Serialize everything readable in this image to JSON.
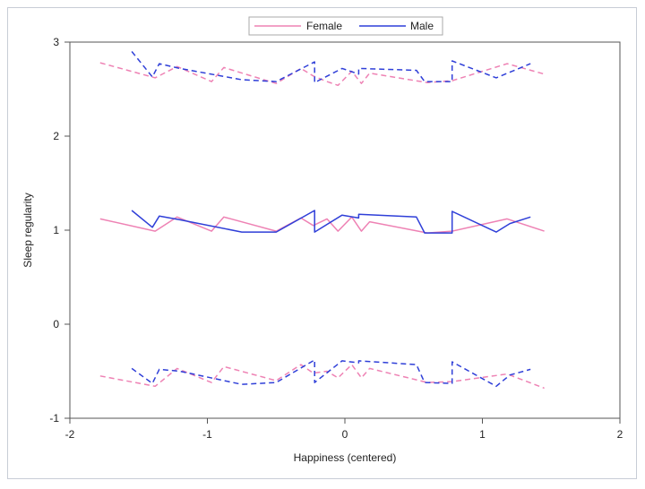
{
  "chart_data": {
    "type": "line",
    "xlabel": "Happiness (centered)",
    "ylabel": "Sleep regularity",
    "xlim": [
      -2,
      2
    ],
    "ylim": [
      -1,
      3
    ],
    "xticks": [
      -2,
      -1,
      0,
      1,
      2
    ],
    "yticks": [
      -1,
      0,
      1,
      2,
      3
    ],
    "legend_position": "top-center",
    "grid": false,
    "series": [
      {
        "name": "Female",
        "color": "#ee82b4",
        "estimate": [
          [
            -1.78,
            1.12
          ],
          [
            -1.38,
            0.99
          ],
          [
            -1.22,
            1.14
          ],
          [
            -0.97,
            0.99
          ],
          [
            -0.88,
            1.14
          ],
          [
            -0.5,
            0.99
          ],
          [
            -0.32,
            1.13
          ],
          [
            -0.23,
            1.05
          ],
          [
            -0.13,
            1.12
          ],
          [
            -0.05,
            0.99
          ],
          [
            0.05,
            1.14
          ],
          [
            0.12,
            0.99
          ],
          [
            0.18,
            1.09
          ],
          [
            0.6,
            0.97
          ],
          [
            0.78,
            0.99
          ],
          [
            1.18,
            1.12
          ],
          [
            1.45,
            0.99
          ]
        ],
        "upper": [
          [
            -1.78,
            2.78
          ],
          [
            -1.38,
            2.62
          ],
          [
            -1.22,
            2.74
          ],
          [
            -0.97,
            2.58
          ],
          [
            -0.88,
            2.73
          ],
          [
            -0.5,
            2.56
          ],
          [
            -0.32,
            2.72
          ],
          [
            -0.23,
            2.64
          ],
          [
            -0.13,
            2.58
          ],
          [
            -0.05,
            2.54
          ],
          [
            0.05,
            2.69
          ],
          [
            0.12,
            2.56
          ],
          [
            0.18,
            2.67
          ],
          [
            0.6,
            2.57
          ],
          [
            0.78,
            2.59
          ],
          [
            1.18,
            2.77
          ],
          [
            1.45,
            2.66
          ]
        ],
        "lower": [
          [
            -1.78,
            -0.55
          ],
          [
            -1.38,
            -0.66
          ],
          [
            -1.22,
            -0.47
          ],
          [
            -0.97,
            -0.62
          ],
          [
            -0.88,
            -0.45
          ],
          [
            -0.5,
            -0.6
          ],
          [
            -0.32,
            -0.43
          ],
          [
            -0.23,
            -0.52
          ],
          [
            -0.13,
            -0.5
          ],
          [
            -0.05,
            -0.57
          ],
          [
            0.05,
            -0.43
          ],
          [
            0.12,
            -0.57
          ],
          [
            0.18,
            -0.47
          ],
          [
            0.6,
            -0.62
          ],
          [
            0.78,
            -0.61
          ],
          [
            1.18,
            -0.53
          ],
          [
            1.45,
            -0.68
          ]
        ]
      },
      {
        "name": "Male",
        "color": "#2f3fd8",
        "estimate": [
          [
            -1.55,
            1.21
          ],
          [
            -1.4,
            1.03
          ],
          [
            -1.35,
            1.15
          ],
          [
            -1.2,
            1.11
          ],
          [
            -0.75,
            0.98
          ],
          [
            -0.5,
            0.98
          ],
          [
            -0.22,
            1.21
          ],
          [
            -0.22,
            0.98
          ],
          [
            -0.02,
            1.16
          ],
          [
            0.1,
            1.13
          ],
          [
            0.1,
            1.17
          ],
          [
            0.52,
            1.14
          ],
          [
            0.58,
            0.97
          ],
          [
            0.78,
            0.97
          ],
          [
            0.78,
            1.2
          ],
          [
            1.1,
            0.98
          ],
          [
            1.2,
            1.07
          ],
          [
            1.35,
            1.14
          ]
        ],
        "upper": [
          [
            -1.55,
            2.9
          ],
          [
            -1.4,
            2.63
          ],
          [
            -1.35,
            2.77
          ],
          [
            -1.2,
            2.72
          ],
          [
            -0.75,
            2.6
          ],
          [
            -0.5,
            2.58
          ],
          [
            -0.22,
            2.79
          ],
          [
            -0.22,
            2.57
          ],
          [
            -0.02,
            2.72
          ],
          [
            0.1,
            2.66
          ],
          [
            0.1,
            2.72
          ],
          [
            0.52,
            2.7
          ],
          [
            0.58,
            2.58
          ],
          [
            0.78,
            2.58
          ],
          [
            0.78,
            2.8
          ],
          [
            1.1,
            2.62
          ],
          [
            1.2,
            2.68
          ],
          [
            1.35,
            2.77
          ]
        ],
        "lower": [
          [
            -1.55,
            -0.47
          ],
          [
            -1.4,
            -0.63
          ],
          [
            -1.35,
            -0.48
          ],
          [
            -1.2,
            -0.5
          ],
          [
            -0.75,
            -0.64
          ],
          [
            -0.5,
            -0.62
          ],
          [
            -0.22,
            -0.38
          ],
          [
            -0.22,
            -0.62
          ],
          [
            -0.02,
            -0.39
          ],
          [
            0.1,
            -0.41
          ],
          [
            0.1,
            -0.39
          ],
          [
            0.52,
            -0.43
          ],
          [
            0.58,
            -0.62
          ],
          [
            0.78,
            -0.63
          ],
          [
            0.78,
            -0.4
          ],
          [
            1.1,
            -0.66
          ],
          [
            1.2,
            -0.54
          ],
          [
            1.35,
            -0.48
          ]
        ]
      }
    ]
  }
}
